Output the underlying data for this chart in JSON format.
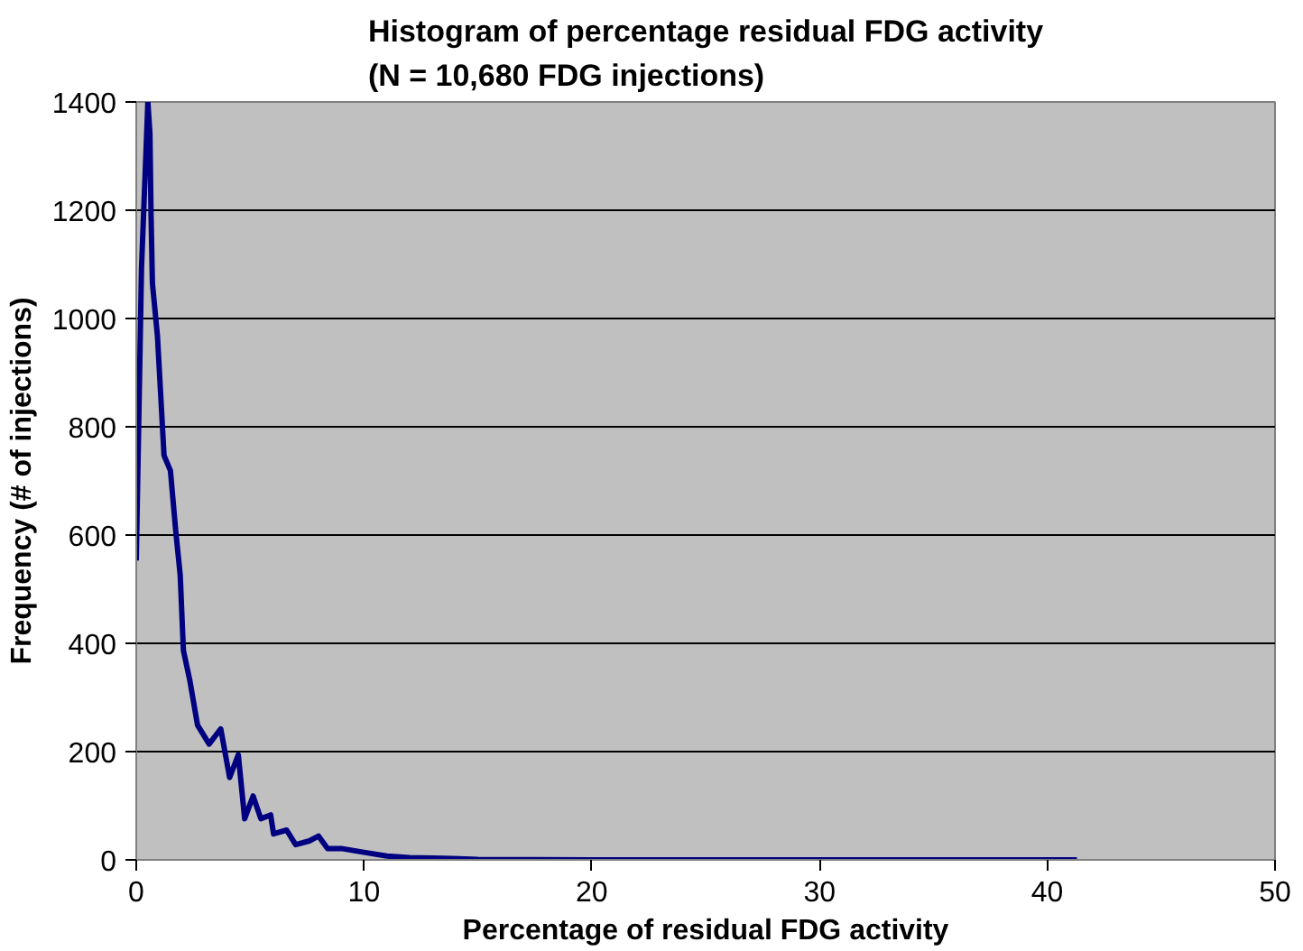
{
  "chart_data": {
    "type": "line",
    "title": "Histogram of percentage residual FDG activity\n(N = 10,680 FDG injections)",
    "xlabel": "Percentage of residual FDG activity",
    "ylabel": "Frequency (# of injections)",
    "xlim": [
      0,
      50
    ],
    "xticks": [
      0,
      10,
      20,
      30,
      40,
      50
    ],
    "ylim": [
      0,
      1400
    ],
    "yticks": [
      0,
      200,
      400,
      600,
      800,
      1000,
      1200,
      1400
    ],
    "grid": "y",
    "series": [
      {
        "color": "#000080",
        "x": [
          0,
          0.23,
          0.42,
          0.51,
          0.6,
          0.65,
          0.71,
          0.93,
          1.22,
          1.5,
          1.73,
          1.93,
          2.07,
          2.35,
          2.69,
          3.2,
          3.71,
          4.1,
          4.48,
          4.76,
          5.13,
          5.47,
          5.9,
          6.03,
          6.6,
          7.0,
          7.6,
          8.0,
          8.4,
          9.0,
          10,
          11,
          12,
          13.5,
          15,
          20,
          30,
          41.3
        ],
        "values": [
          553,
          1093,
          1300,
          1400,
          1342,
          1190,
          1065,
          968,
          747,
          719,
          609,
          526,
          387,
          332,
          249,
          214,
          242,
          152,
          194,
          76,
          118,
          76,
          83,
          48,
          55,
          28,
          35,
          44,
          21,
          21,
          14,
          7,
          4,
          3,
          1,
          0,
          0,
          0
        ]
      }
    ]
  }
}
